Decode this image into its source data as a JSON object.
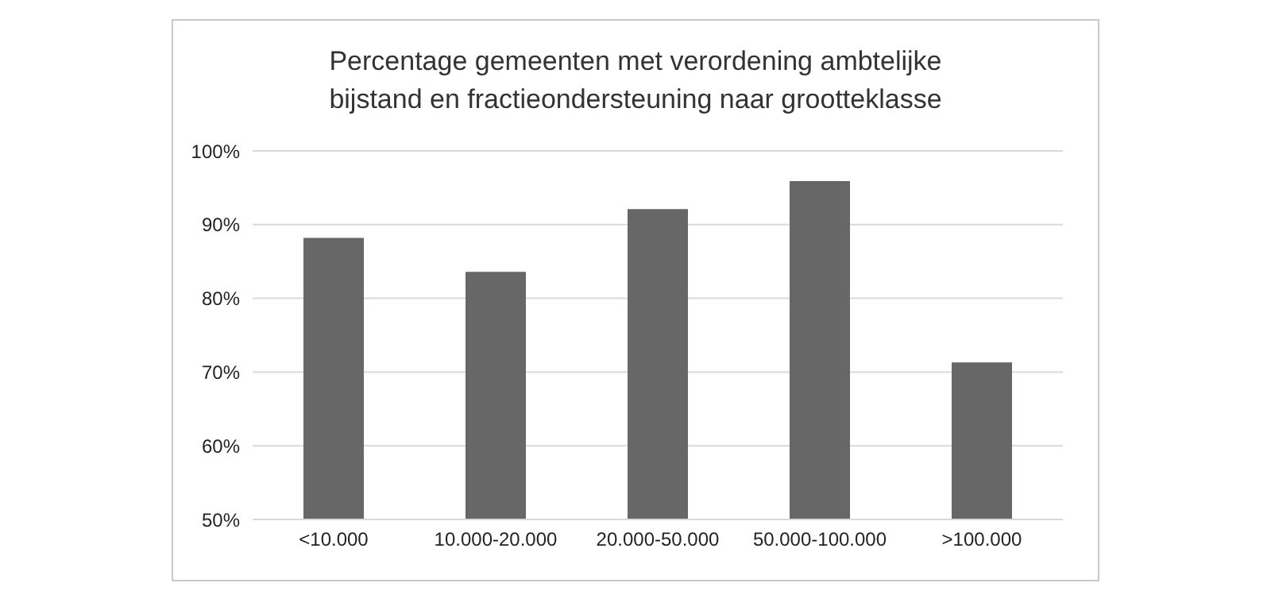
{
  "chart_data": {
    "type": "bar",
    "title": "Percentage gemeenten met verordening ambtelijke bijstand en fractieondersteuning naar grootteklasse",
    "categories": [
      "<10.000",
      "10.000-20.000",
      "20.000-50.000",
      "50.000-100.000",
      ">100.000"
    ],
    "values": [
      88.2,
      83.6,
      92.1,
      95.9,
      71.3
    ],
    "color": "#676767",
    "ylim": [
      50,
      100
    ],
    "yticks": [
      {
        "value": 50,
        "label": "50%"
      },
      {
        "value": 60,
        "label": "60%"
      },
      {
        "value": 70,
        "label": "70%"
      },
      {
        "value": 80,
        "label": "80%"
      },
      {
        "value": 90,
        "label": "90%"
      },
      {
        "value": 100,
        "label": "100%"
      }
    ],
    "grid": "y"
  }
}
